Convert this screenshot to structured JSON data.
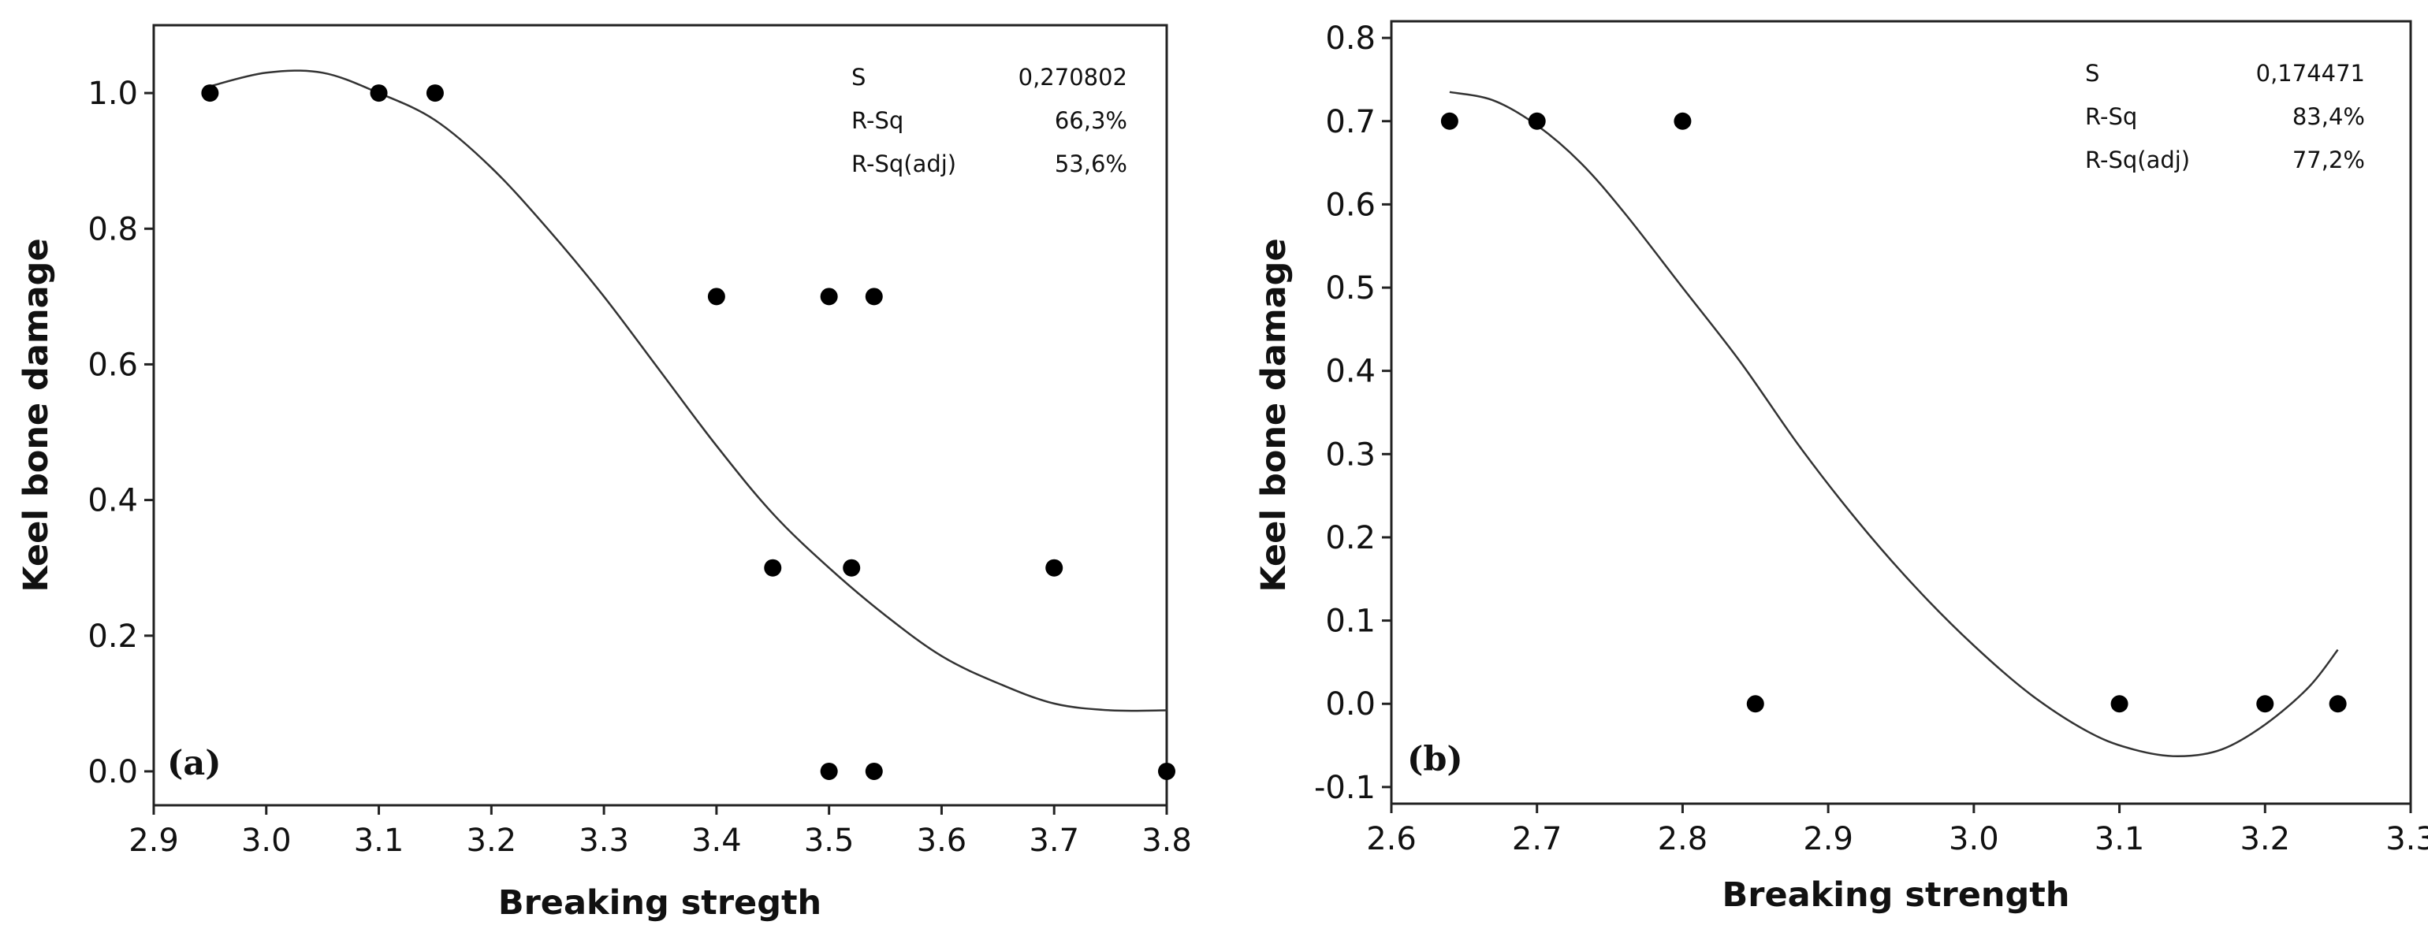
{
  "chart_data": [
    {
      "type": "scatter",
      "panel_label": "(a)",
      "xlabel": "Breaking stregth",
      "ylabel": "Keel bone damage",
      "xlim": [
        2.9,
        3.8
      ],
      "ylim": [
        -0.05,
        1.1
      ],
      "xticks": [
        2.9,
        3.0,
        3.1,
        3.2,
        3.3,
        3.4,
        3.5,
        3.6,
        3.7,
        3.8
      ],
      "xtick_labels": [
        "2.9",
        "3.0",
        "3.1",
        "3.2",
        "3.3",
        "3.4",
        "3.5",
        "3.6",
        "3.7",
        "3.8"
      ],
      "yticks": [
        0.0,
        0.2,
        0.4,
        0.6,
        0.8,
        1.0
      ],
      "ytick_labels": [
        "0.0",
        "0.2",
        "0.4",
        "0.6",
        "0.8",
        "1.0"
      ],
      "points": {
        "x": [
          2.95,
          3.1,
          3.15,
          3.4,
          3.5,
          3.54,
          3.45,
          3.52,
          3.7,
          3.5,
          3.54,
          3.8
        ],
        "y": [
          1.0,
          1.0,
          1.0,
          0.7,
          0.7,
          0.7,
          0.3,
          0.3,
          0.3,
          0.0,
          0.0,
          0.0
        ]
      },
      "fit_line": {
        "x": [
          2.95,
          3.0,
          3.05,
          3.1,
          3.15,
          3.2,
          3.25,
          3.3,
          3.35,
          3.4,
          3.45,
          3.5,
          3.55,
          3.6,
          3.65,
          3.7,
          3.75,
          3.8
        ],
        "y": [
          1.01,
          1.03,
          1.03,
          1.0,
          0.96,
          0.89,
          0.8,
          0.7,
          0.59,
          0.48,
          0.38,
          0.3,
          0.23,
          0.17,
          0.13,
          0.1,
          0.09,
          0.09
        ]
      },
      "stats": [
        {
          "label": "S",
          "value": "0,270802"
        },
        {
          "label": "R-Sq",
          "value": "66,3%"
        },
        {
          "label": "R-Sq(adj)",
          "value": "53,6%"
        }
      ]
    },
    {
      "type": "scatter",
      "panel_label": "(b)",
      "xlabel": "Breaking strength",
      "ylabel": "Keel bone damage",
      "xlim": [
        2.6,
        3.3
      ],
      "ylim": [
        -0.12,
        0.82
      ],
      "xticks": [
        2.6,
        2.7,
        2.8,
        2.9,
        3.0,
        3.1,
        3.2,
        3.3
      ],
      "xtick_labels": [
        "2.6",
        "2.7",
        "2.8",
        "2.9",
        "3.0",
        "3.1",
        "3.2",
        "3.3"
      ],
      "yticks": [
        -0.1,
        0.0,
        0.1,
        0.2,
        0.3,
        0.4,
        0.5,
        0.6,
        0.7,
        0.8
      ],
      "ytick_labels": [
        "-0.1",
        "0.0",
        "0.1",
        "0.2",
        "0.3",
        "0.4",
        "0.5",
        "0.6",
        "0.7",
        "0.8"
      ],
      "points": {
        "x": [
          2.64,
          2.7,
          2.8,
          2.85,
          3.1,
          3.2,
          3.25
        ],
        "y": [
          0.7,
          0.7,
          0.7,
          0.0,
          0.0,
          0.0,
          0.0
        ]
      },
      "fit_line": {
        "x": [
          2.64,
          2.67,
          2.7,
          2.73,
          2.76,
          2.8,
          2.84,
          2.88,
          2.92,
          2.96,
          3.0,
          3.04,
          3.08,
          3.11,
          3.14,
          3.17,
          3.2,
          3.23,
          3.25
        ],
        "y": [
          0.735,
          0.725,
          0.695,
          0.65,
          0.59,
          0.5,
          0.41,
          0.31,
          0.22,
          0.14,
          0.07,
          0.01,
          -0.035,
          -0.055,
          -0.063,
          -0.055,
          -0.025,
          0.02,
          0.065
        ]
      },
      "stats": [
        {
          "label": "S",
          "value": "0,174471"
        },
        {
          "label": "R-Sq",
          "value": "83,4%"
        },
        {
          "label": "R-Sq(adj)",
          "value": "77,2%"
        }
      ]
    }
  ]
}
